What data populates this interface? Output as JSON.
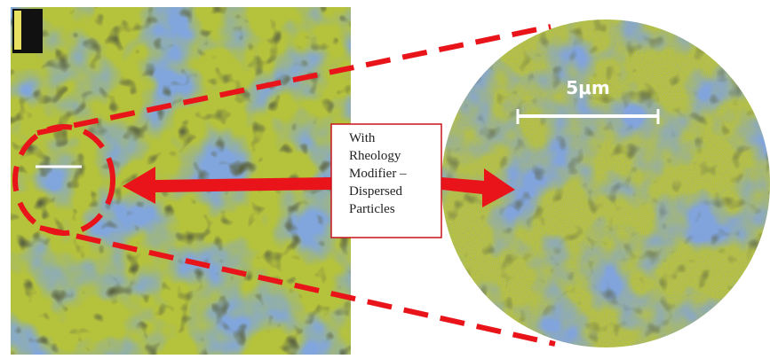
{
  "annotation": {
    "lines": [
      "With",
      "Rheology",
      "Modifier –",
      "Dispersed",
      "Particles"
    ]
  },
  "scale_bar": {
    "label": "5μm"
  }
}
